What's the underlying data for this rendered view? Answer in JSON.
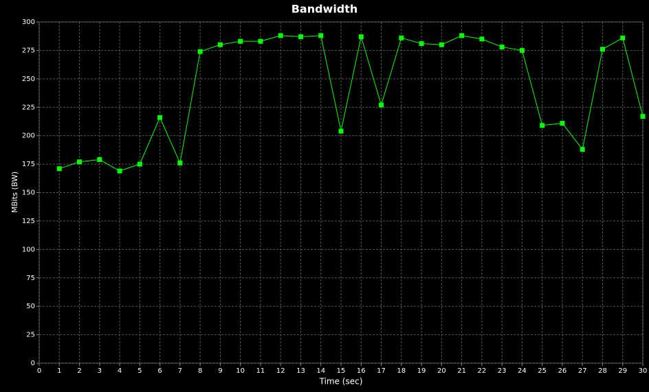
{
  "chart_data": {
    "type": "line",
    "title": "Bandwidth",
    "xlabel": "Time (sec)",
    "ylabel": "MBits (BW)",
    "x": [
      1,
      2,
      3,
      4,
      5,
      6,
      7,
      8,
      9,
      10,
      11,
      12,
      13,
      14,
      15,
      16,
      17,
      18,
      19,
      20,
      21,
      22,
      23,
      24,
      25,
      26,
      27,
      28,
      29,
      30
    ],
    "series": [
      {
        "color": "#00ff00",
        "values": [
          171,
          177,
          179,
          169,
          175,
          216,
          176,
          274,
          280,
          283,
          283,
          288,
          287,
          288,
          204,
          287,
          227,
          286,
          281,
          280,
          288,
          285,
          278,
          275,
          209,
          211,
          188,
          276,
          286,
          217
        ]
      }
    ],
    "xlim": [
      0,
      30
    ],
    "xticks": [
      0,
      1,
      2,
      3,
      4,
      5,
      6,
      7,
      8,
      9,
      10,
      11,
      12,
      13,
      14,
      15,
      16,
      17,
      18,
      19,
      20,
      21,
      22,
      23,
      24,
      25,
      26,
      27,
      28,
      29,
      30
    ],
    "ylim": [
      0,
      300
    ],
    "yticks": [
      0,
      25,
      50,
      75,
      100,
      125,
      150,
      175,
      200,
      225,
      250,
      275,
      300
    ],
    "grid": true
  }
}
